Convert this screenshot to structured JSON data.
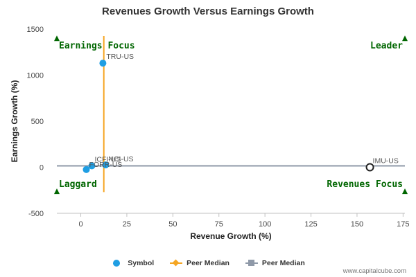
{
  "chart_data": {
    "type": "scatter",
    "title": "Revenues Growth Versus Earnings Growth",
    "xlabel": "Revenue Growth (%)",
    "ylabel": "Earnings Growth (%)",
    "xlim": [
      -13,
      176
    ],
    "ylim": [
      -500,
      1500
    ],
    "x_ticks": [
      0,
      25,
      50,
      75,
      100,
      125,
      150,
      175
    ],
    "y_ticks": [
      -500,
      0,
      500,
      1000,
      1500
    ],
    "grid": false,
    "legend_position": "bottom",
    "points": [
      {
        "label": "TRU-US",
        "x": 12,
        "y": 1130,
        "highlight": false
      },
      {
        "label": "ICFI-US",
        "x": 6,
        "y": 15,
        "highlight": false
      },
      {
        "label": "FORR-US",
        "x": 3,
        "y": -25,
        "highlight": false
      },
      {
        "label": "NCI-US",
        "x": 13.5,
        "y": 25,
        "highlight": false
      },
      {
        "label": "IMU-US",
        "x": 157,
        "y": 0,
        "highlight": true
      }
    ],
    "peer_median_x": 12.5,
    "peer_median_y": 15,
    "quadrants": {
      "top_left": "Earnings Focus",
      "top_right": "Leader",
      "bottom_left": "Laggard",
      "bottom_right": "Revenues Focus"
    },
    "legend": [
      {
        "name": "Symbol",
        "style": "dot",
        "color": "#1f9ee3"
      },
      {
        "name": "Peer Median",
        "style": "line-diamond",
        "color": "#f5a623"
      },
      {
        "name": "Peer Median",
        "style": "line-square",
        "color": "#8f99a8"
      }
    ],
    "colors": {
      "point": "#1f9ee3",
      "highlight_fill": "#ffffff",
      "highlight_stroke": "#222222",
      "vertical_median": "#f5a623",
      "horizontal_median": "#8f99a8",
      "quadrant_label": "#006600",
      "quadrant_marker": "#006600"
    }
  },
  "footer": "www.capitalcube.com"
}
